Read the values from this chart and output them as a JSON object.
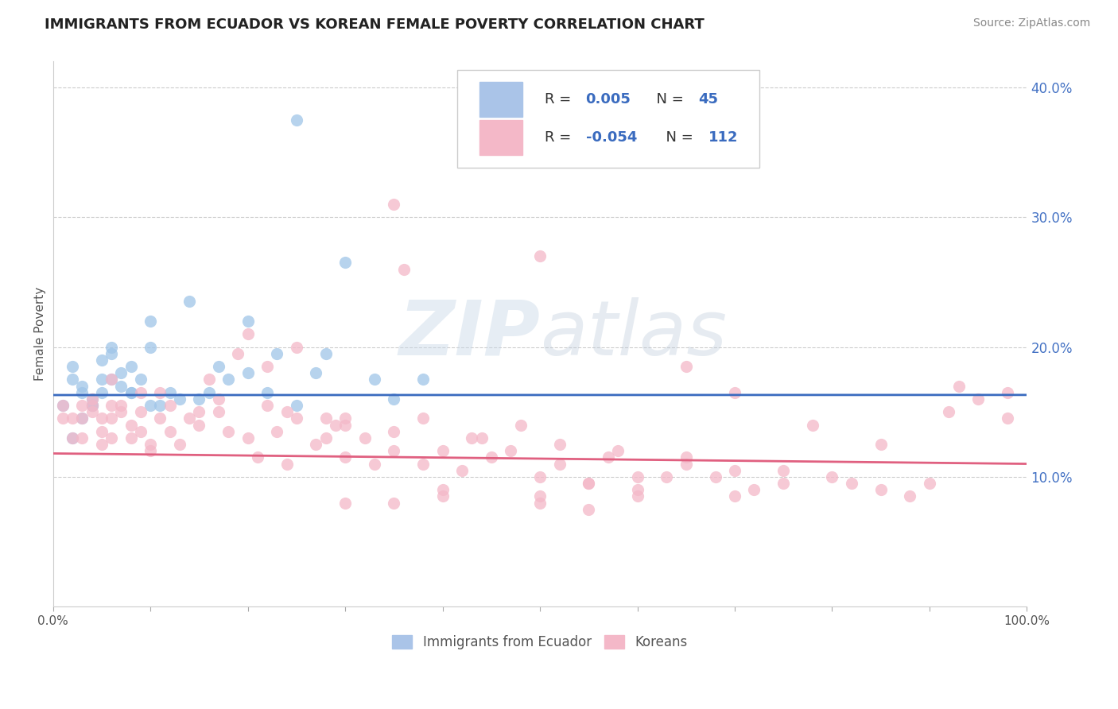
{
  "title": "IMMIGRANTS FROM ECUADOR VS KOREAN FEMALE POVERTY CORRELATION CHART",
  "source": "Source: ZipAtlas.com",
  "ylabel": "Female Poverty",
  "xlim": [
    0.0,
    1.0
  ],
  "ylim": [
    0.0,
    0.42
  ],
  "x_ticks": [
    0.0,
    0.1,
    0.2,
    0.3,
    0.4,
    0.5,
    0.6,
    0.7,
    0.8,
    0.9,
    1.0
  ],
  "x_tick_labels": [
    "0.0%",
    "",
    "",
    "",
    "",
    "",
    "",
    "",
    "",
    "",
    "100.0%"
  ],
  "y_ticks": [
    0.1,
    0.2,
    0.3,
    0.4
  ],
  "y_tick_labels": [
    "10.0%",
    "20.0%",
    "30.0%",
    "40.0%"
  ],
  "watermark": "ZIPatlas",
  "blue_color": "#9fc5e8",
  "pink_color": "#f4b8c8",
  "blue_line_color": "#3a6bbf",
  "pink_line_color": "#e06080",
  "dashed_line_color": "#9ab8d8",
  "dashed_line_y": 0.163,
  "blue_trend_intercept": 0.163,
  "blue_trend_slope": 0.0001,
  "pink_trend_intercept": 0.118,
  "pink_trend_slope": -0.008,
  "blue_points_x": [
    0.01,
    0.02,
    0.02,
    0.03,
    0.03,
    0.04,
    0.04,
    0.05,
    0.05,
    0.05,
    0.06,
    0.06,
    0.07,
    0.07,
    0.08,
    0.08,
    0.09,
    0.1,
    0.1,
    0.11,
    0.12,
    0.13,
    0.14,
    0.16,
    0.17,
    0.18,
    0.2,
    0.22,
    0.23,
    0.25,
    0.27,
    0.28,
    0.3,
    0.33,
    0.35,
    0.38,
    0.02,
    0.03,
    0.04,
    0.06,
    0.08,
    0.1,
    0.15,
    0.2,
    0.25
  ],
  "blue_points_y": [
    0.155,
    0.175,
    0.185,
    0.17,
    0.165,
    0.16,
    0.155,
    0.19,
    0.175,
    0.165,
    0.2,
    0.195,
    0.18,
    0.17,
    0.185,
    0.165,
    0.175,
    0.22,
    0.2,
    0.155,
    0.165,
    0.16,
    0.235,
    0.165,
    0.185,
    0.175,
    0.22,
    0.165,
    0.195,
    0.155,
    0.18,
    0.195,
    0.265,
    0.175,
    0.16,
    0.175,
    0.13,
    0.145,
    0.155,
    0.175,
    0.165,
    0.155,
    0.16,
    0.18,
    0.375
  ],
  "pink_points_x": [
    0.01,
    0.01,
    0.02,
    0.02,
    0.03,
    0.03,
    0.03,
    0.04,
    0.04,
    0.05,
    0.05,
    0.05,
    0.06,
    0.06,
    0.06,
    0.07,
    0.07,
    0.08,
    0.08,
    0.09,
    0.09,
    0.1,
    0.1,
    0.11,
    0.12,
    0.12,
    0.13,
    0.14,
    0.15,
    0.16,
    0.17,
    0.18,
    0.19,
    0.2,
    0.21,
    0.22,
    0.23,
    0.24,
    0.25,
    0.27,
    0.28,
    0.29,
    0.3,
    0.32,
    0.33,
    0.35,
    0.36,
    0.38,
    0.4,
    0.42,
    0.44,
    0.45,
    0.47,
    0.5,
    0.52,
    0.55,
    0.57,
    0.6,
    0.65,
    0.68,
    0.7,
    0.75,
    0.8,
    0.85,
    0.9,
    0.95,
    0.3,
    0.4,
    0.5,
    0.6,
    0.7,
    0.04,
    0.09,
    0.15,
    0.22,
    0.3,
    0.38,
    0.48,
    0.55,
    0.63,
    0.72,
    0.06,
    0.11,
    0.17,
    0.24,
    0.28,
    0.35,
    0.43,
    0.52,
    0.58,
    0.65,
    0.75,
    0.82,
    0.88,
    0.93,
    0.98,
    0.35,
    0.5,
    0.65,
    0.7,
    0.78,
    0.85,
    0.92,
    0.5,
    0.55,
    0.6,
    0.3,
    0.35,
    0.98,
    0.2,
    0.25,
    0.4
  ],
  "pink_points_y": [
    0.155,
    0.145,
    0.145,
    0.13,
    0.155,
    0.145,
    0.13,
    0.16,
    0.15,
    0.145,
    0.135,
    0.125,
    0.155,
    0.145,
    0.13,
    0.155,
    0.15,
    0.14,
    0.13,
    0.135,
    0.15,
    0.125,
    0.12,
    0.145,
    0.155,
    0.135,
    0.125,
    0.145,
    0.14,
    0.175,
    0.15,
    0.135,
    0.195,
    0.13,
    0.115,
    0.185,
    0.135,
    0.11,
    0.145,
    0.125,
    0.13,
    0.14,
    0.115,
    0.13,
    0.11,
    0.12,
    0.26,
    0.11,
    0.12,
    0.105,
    0.13,
    0.115,
    0.12,
    0.1,
    0.11,
    0.095,
    0.115,
    0.1,
    0.11,
    0.1,
    0.105,
    0.095,
    0.1,
    0.09,
    0.095,
    0.16,
    0.145,
    0.09,
    0.085,
    0.09,
    0.085,
    0.155,
    0.165,
    0.15,
    0.155,
    0.14,
    0.145,
    0.14,
    0.095,
    0.1,
    0.09,
    0.175,
    0.165,
    0.16,
    0.15,
    0.145,
    0.135,
    0.13,
    0.125,
    0.12,
    0.115,
    0.105,
    0.095,
    0.085,
    0.17,
    0.145,
    0.31,
    0.27,
    0.185,
    0.165,
    0.14,
    0.125,
    0.15,
    0.08,
    0.075,
    0.085,
    0.08,
    0.08,
    0.165,
    0.21,
    0.2,
    0.085
  ]
}
